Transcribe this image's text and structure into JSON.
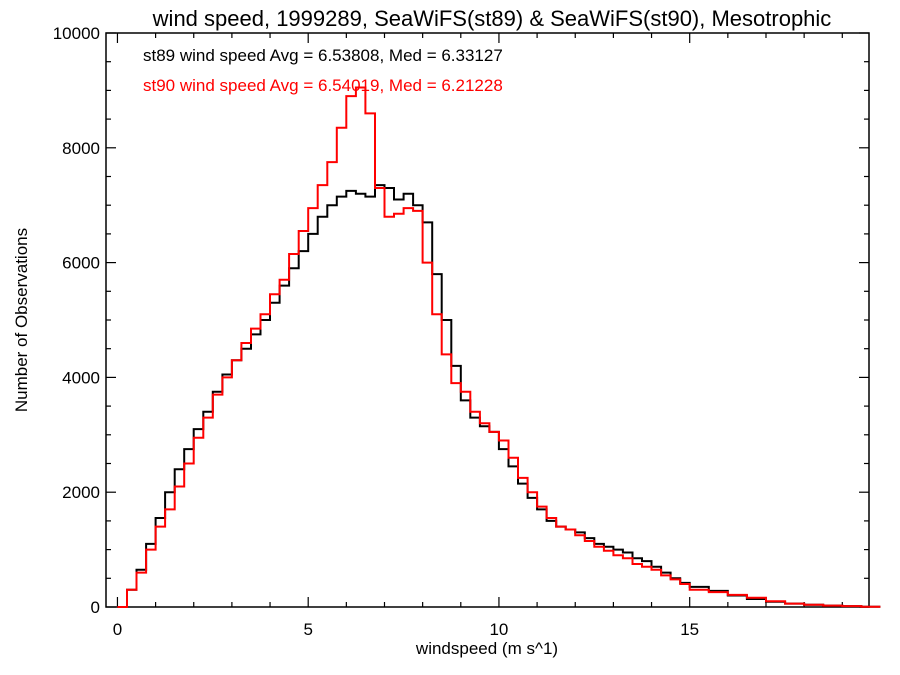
{
  "chart_data": {
    "type": "line",
    "title": "wind speed, 1999289, SeaWiFS(st89) & SeaWiFS(st90), Mesotrophic",
    "xlabel": "windspeed (m s^1)",
    "ylabel": "Number of Observations",
    "xlim": [
      -0.3,
      19.7
    ],
    "ylim": [
      0,
      10000
    ],
    "x_ticks": [
      0,
      5,
      10,
      15
    ],
    "y_ticks": [
      0,
      2000,
      4000,
      6000,
      8000,
      10000
    ],
    "x_tick_labels": [
      "0",
      "5",
      "10",
      "15"
    ],
    "y_tick_labels": [
      "0",
      "2000",
      "4000",
      "6000",
      "8000",
      "10000"
    ],
    "grid": false,
    "step": true,
    "series": [
      {
        "name": "st89",
        "color": "#000000",
        "legend": "st89 wind speed Avg = 6.53808, Med = 6.33127",
        "x": [
          0,
          0.25,
          0.5,
          0.75,
          1,
          1.25,
          1.5,
          1.75,
          2,
          2.25,
          2.5,
          2.75,
          3,
          3.25,
          3.5,
          3.75,
          4,
          4.25,
          4.5,
          4.75,
          5,
          5.25,
          5.5,
          5.75,
          6,
          6.25,
          6.5,
          6.75,
          7,
          7.25,
          7.5,
          7.75,
          8,
          8.25,
          8.5,
          8.75,
          9,
          9.25,
          9.5,
          9.75,
          10,
          10.25,
          10.5,
          10.75,
          11,
          11.25,
          11.5,
          11.75,
          12,
          12.25,
          12.5,
          12.75,
          13,
          13.25,
          13.5,
          13.75,
          14,
          14.25,
          14.5,
          14.75,
          15,
          15.5,
          16,
          16.5,
          17,
          17.5,
          18,
          18.5,
          19,
          19.5
        ],
        "y": [
          0,
          300,
          650,
          1100,
          1550,
          2000,
          2400,
          2750,
          3100,
          3400,
          3750,
          4050,
          4300,
          4500,
          4750,
          5000,
          5300,
          5600,
          5900,
          6200,
          6500,
          6800,
          7000,
          7150,
          7250,
          7200,
          7150,
          7350,
          7300,
          7100,
          7200,
          7000,
          6700,
          5800,
          5000,
          4200,
          3600,
          3300,
          3150,
          3050,
          2750,
          2450,
          2150,
          1900,
          1700,
          1500,
          1400,
          1350,
          1300,
          1200,
          1100,
          1050,
          1000,
          950,
          850,
          800,
          700,
          600,
          500,
          420,
          350,
          280,
          200,
          140,
          90,
          60,
          40,
          25,
          15,
          5
        ]
      },
      {
        "name": "st90",
        "color": "#ff0000",
        "legend": "st90 wind speed Avg = 6.54019, Med = 6.21228",
        "x": [
          0,
          0.25,
          0.5,
          0.75,
          1,
          1.25,
          1.5,
          1.75,
          2,
          2.25,
          2.5,
          2.75,
          3,
          3.25,
          3.5,
          3.75,
          4,
          4.25,
          4.5,
          4.75,
          5,
          5.25,
          5.5,
          5.75,
          6,
          6.25,
          6.5,
          6.75,
          7,
          7.25,
          7.5,
          7.75,
          8,
          8.25,
          8.5,
          8.75,
          9,
          9.25,
          9.5,
          9.75,
          10,
          10.25,
          10.5,
          10.75,
          11,
          11.25,
          11.5,
          11.75,
          12,
          12.25,
          12.5,
          12.75,
          13,
          13.25,
          13.5,
          13.75,
          14,
          14.25,
          14.5,
          14.75,
          15,
          15.5,
          16,
          16.5,
          17,
          17.5,
          18,
          18.5,
          19,
          19.5
        ],
        "y": [
          0,
          300,
          600,
          1000,
          1400,
          1700,
          2100,
          2500,
          2950,
          3300,
          3700,
          4000,
          4300,
          4600,
          4850,
          5100,
          5450,
          5700,
          6150,
          6550,
          6950,
          7350,
          7750,
          8350,
          8900,
          9050,
          8600,
          7300,
          6800,
          6850,
          6950,
          6900,
          6000,
          5100,
          4400,
          3900,
          3750,
          3400,
          3200,
          3050,
          2900,
          2600,
          2250,
          2000,
          1750,
          1550,
          1400,
          1350,
          1250,
          1150,
          1050,
          980,
          900,
          850,
          750,
          700,
          650,
          550,
          480,
          400,
          300,
          260,
          210,
          160,
          100,
          60,
          40,
          25,
          15,
          5
        ]
      }
    ]
  }
}
